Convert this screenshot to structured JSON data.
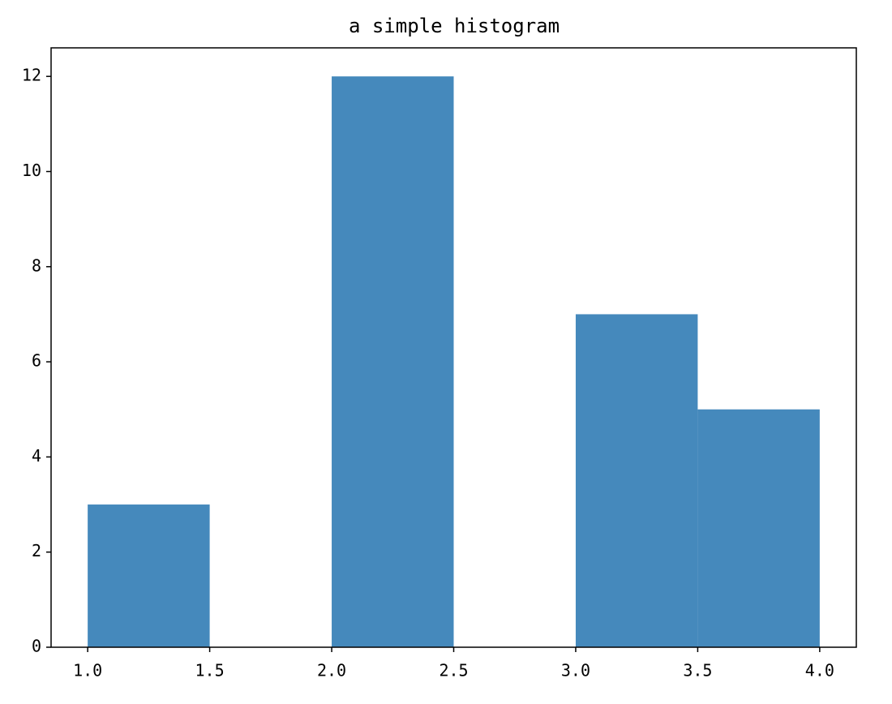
{
  "chart_data": {
    "type": "histogram",
    "title": "a simple histogram",
    "bins": [
      1.0,
      1.5,
      2.0,
      2.5,
      3.0,
      3.5,
      4.0
    ],
    "values": [
      3,
      0,
      12,
      0,
      7,
      5
    ],
    "color": "#4589bc",
    "xlim": [
      0.85,
      4.15
    ],
    "xticks": [
      {
        "value": 1,
        "label": "1.0"
      },
      {
        "value": 1.5,
        "label": "1.5"
      },
      {
        "value": 2,
        "label": "2.0"
      },
      {
        "value": 2.5,
        "label": "2.5"
      },
      {
        "value": 3,
        "label": "3.0"
      },
      {
        "value": 3.5,
        "label": "3.5"
      },
      {
        "value": 4,
        "label": "4.0"
      }
    ],
    "ylim": [
      0,
      12.6
    ],
    "yticks": [
      0,
      2,
      4,
      6,
      8,
      10,
      12
    ],
    "grid": false
  }
}
